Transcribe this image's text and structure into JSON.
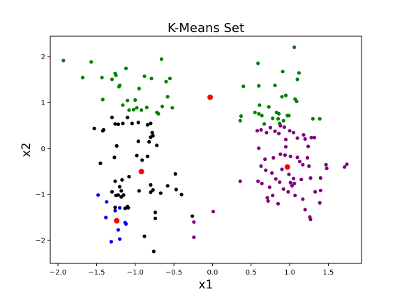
{
  "chart_data": {
    "type": "scatter",
    "title": "K-Means Set",
    "xlabel": "x1",
    "ylabel": "x2",
    "xlim": [
      -2.1,
      1.93
    ],
    "ylim": [
      -2.5,
      2.45
    ],
    "xticks": [
      -2.0,
      -1.5,
      -1.0,
      -0.5,
      0.0,
      0.5,
      1.0,
      1.5
    ],
    "xtick_labels": [
      "−2.0",
      "−1.5",
      "−1.0",
      "−0.5",
      "0.0",
      "0.5",
      "1.0",
      "1.5"
    ],
    "yticks": [
      -2,
      -1,
      0,
      1,
      2
    ],
    "ytick_labels": [
      "−2",
      "−1",
      "0",
      "1",
      "2"
    ],
    "grid": false,
    "series": [
      {
        "color": "#008000",
        "points": [
          [
            -1.93,
            1.92
          ],
          [
            -1.68,
            1.55
          ],
          [
            -1.57,
            1.89
          ],
          [
            -1.43,
            1.55
          ],
          [
            -1.3,
            1.51
          ],
          [
            -1.26,
            1.64
          ],
          [
            -1.25,
            1.6
          ],
          [
            -1.2,
            1.38
          ],
          [
            -1.21,
            1.35
          ],
          [
            -1.12,
            1.75
          ],
          [
            -0.88,
            1.58
          ],
          [
            -0.79,
            1.53
          ],
          [
            -0.66,
            1.95
          ],
          [
            -0.6,
            1.46
          ],
          [
            -0.55,
            1.53
          ],
          [
            -1.42,
            1.07
          ],
          [
            -1.16,
            0.95
          ],
          [
            -1.1,
            1.05
          ],
          [
            -1.0,
            1.06
          ],
          [
            -0.95,
            1.31
          ],
          [
            -1.08,
            0.84
          ],
          [
            -1.02,
            0.85
          ],
          [
            -0.98,
            0.89
          ],
          [
            -0.92,
            0.84
          ],
          [
            -0.85,
            0.9
          ],
          [
            -0.72,
            0.79
          ],
          [
            -0.7,
            0.76
          ],
          [
            -0.65,
            0.92
          ],
          [
            -0.58,
            1.13
          ],
          [
            -0.52,
            0.89
          ],
          [
            1.06,
            2.21
          ],
          [
            0.59,
            1.86
          ],
          [
            0.91,
            1.68
          ],
          [
            1.12,
            1.65
          ],
          [
            1.1,
            1.51
          ],
          [
            0.4,
            1.36
          ],
          [
            0.6,
            1.37
          ],
          [
            0.81,
            1.38
          ],
          [
            0.9,
            1.13
          ],
          [
            0.95,
            1.16
          ],
          [
            1.07,
            1.08
          ],
          [
            1.09,
            1.03
          ],
          [
            0.55,
            0.79
          ],
          [
            0.6,
            0.76
          ],
          [
            0.64,
            0.72
          ],
          [
            0.73,
            0.91
          ],
          [
            0.83,
            0.79
          ],
          [
            0.86,
            0.76
          ],
          [
            0.85,
            0.65
          ],
          [
            0.97,
            0.72
          ],
          [
            0.92,
            0.61
          ],
          [
            0.36,
            0.61
          ],
          [
            0.37,
            0.71
          ],
          [
            0.67,
            0.54
          ],
          [
            0.87,
            0.55
          ],
          [
            1.3,
            0.65
          ],
          [
            1.39,
            0.65
          ],
          [
            0.61,
            0.95
          ],
          [
            0.99,
            0.72
          ],
          [
            0.78,
            0.66
          ]
        ]
      },
      {
        "color": "#000000",
        "points": [
          [
            -1.53,
            0.44
          ],
          [
            -1.42,
            0.39
          ],
          [
            -1.41,
            0.41
          ],
          [
            -1.3,
            0.68
          ],
          [
            -1.26,
            0.54
          ],
          [
            -1.22,
            0.53
          ],
          [
            -1.16,
            0.55
          ],
          [
            -1.1,
            0.68
          ],
          [
            -1.04,
            0.55
          ],
          [
            -0.96,
            0.57
          ],
          [
            -0.84,
            0.52
          ],
          [
            -0.8,
            0.55
          ],
          [
            -0.78,
            0.35
          ],
          [
            -0.8,
            0.25
          ],
          [
            -0.77,
            0.28
          ],
          [
            -0.82,
            0.15
          ],
          [
            -0.72,
            0.07
          ],
          [
            -0.96,
            0.16
          ],
          [
            -1.24,
            0.06
          ],
          [
            -1.45,
            -0.32
          ],
          [
            -1.27,
            -0.19
          ],
          [
            -0.98,
            -0.15
          ],
          [
            -0.91,
            -0.25
          ],
          [
            -0.84,
            -0.17
          ],
          [
            -1.08,
            -0.61
          ],
          [
            -1.2,
            -0.83
          ],
          [
            -1.18,
            -0.92
          ],
          [
            -1.15,
            -1.01
          ],
          [
            -1.25,
            -1.02
          ],
          [
            -1.3,
            -0.94
          ],
          [
            -1.18,
            -1.05
          ],
          [
            -1.1,
            -1.26
          ],
          [
            -1.09,
            -1.29
          ],
          [
            -1.13,
            -1.3
          ],
          [
            -1.26,
            -1.28
          ],
          [
            -1.22,
            -1.01
          ],
          [
            -0.95,
            -0.92
          ],
          [
            -0.8,
            -0.79
          ],
          [
            -0.8,
            -0.95
          ],
          [
            -0.77,
            -0.9
          ],
          [
            -0.67,
            -0.97
          ],
          [
            -0.58,
            -0.81
          ],
          [
            -0.48,
            -0.55
          ],
          [
            -0.47,
            -0.89
          ],
          [
            -0.4,
            -1.0
          ],
          [
            -0.74,
            -1.39
          ],
          [
            -0.74,
            -1.52
          ],
          [
            -0.88,
            -1.91
          ],
          [
            -0.76,
            -2.24
          ],
          [
            -0.26,
            -1.47
          ],
          [
            -1.26,
            -0.71
          ],
          [
            -1.17,
            -0.68
          ]
        ]
      },
      {
        "color": "#0000ff",
        "points": [
          [
            -1.48,
            -1.01
          ],
          [
            -1.37,
            -1.16
          ],
          [
            -1.38,
            -1.5
          ],
          [
            -1.26,
            -1.35
          ],
          [
            -1.2,
            -1.29
          ],
          [
            -1.13,
            -1.61
          ],
          [
            -1.12,
            -1.64
          ],
          [
            -1.2,
            -1.97
          ],
          [
            -1.31,
            -2.03
          ],
          [
            -1.22,
            -1.77
          ]
        ]
      },
      {
        "color": "#800080",
        "points": [
          [
            -0.24,
            -1.6
          ],
          [
            -0.24,
            -1.93
          ],
          [
            0.01,
            -1.37
          ],
          [
            0.36,
            -0.71
          ],
          [
            0.58,
            0.39
          ],
          [
            0.63,
            0.41
          ],
          [
            0.7,
            0.35
          ],
          [
            0.75,
            0.46
          ],
          [
            0.81,
            0.38
          ],
          [
            0.86,
            0.33
          ],
          [
            0.88,
            0.5
          ],
          [
            0.93,
            0.47
          ],
          [
            1.0,
            0.39
          ],
          [
            1.05,
            0.35
          ],
          [
            0.95,
            0.2
          ],
          [
            1.1,
            0.23
          ],
          [
            1.18,
            0.3
          ],
          [
            1.2,
            0.21
          ],
          [
            1.28,
            0.24
          ],
          [
            1.32,
            0.24
          ],
          [
            1.24,
            0.05
          ],
          [
            0.95,
            0.04
          ],
          [
            0.6,
            0.01
          ],
          [
            0.68,
            -0.23
          ],
          [
            0.79,
            -0.2
          ],
          [
            0.88,
            -0.12
          ],
          [
            0.94,
            -0.14
          ],
          [
            1.01,
            -0.17
          ],
          [
            1.1,
            -0.19
          ],
          [
            1.13,
            -0.28
          ],
          [
            1.17,
            -0.35
          ],
          [
            1.23,
            -0.2
          ],
          [
            1.25,
            -0.38
          ],
          [
            1.47,
            -0.35
          ],
          [
            1.48,
            -0.43
          ],
          [
            1.71,
            -0.4
          ],
          [
            1.74,
            -0.34
          ],
          [
            0.63,
            -0.38
          ],
          [
            0.69,
            -0.47
          ],
          [
            0.77,
            -0.53
          ],
          [
            0.82,
            -0.66
          ],
          [
            0.87,
            -0.73
          ],
          [
            0.9,
            -0.45
          ],
          [
            0.99,
            -0.56
          ],
          [
            1.05,
            -0.65
          ],
          [
            1.01,
            -0.74
          ],
          [
            1.06,
            -0.76
          ],
          [
            1.15,
            -0.67
          ],
          [
            1.27,
            -0.64
          ],
          [
            1.4,
            -0.64
          ],
          [
            0.71,
            -1.07
          ],
          [
            0.72,
            -1.14
          ],
          [
            0.78,
            -1.02
          ],
          [
            0.85,
            -1.2
          ],
          [
            0.92,
            -0.88
          ],
          [
            0.98,
            -0.94
          ],
          [
            1.03,
            -0.81
          ],
          [
            1.07,
            -1.02
          ],
          [
            1.17,
            -1.1
          ],
          [
            1.2,
            -1.33
          ],
          [
            1.26,
            -1.49
          ],
          [
            1.27,
            -1.54
          ],
          [
            1.33,
            -0.94
          ],
          [
            1.4,
            -0.91
          ],
          [
            1.39,
            -1.18
          ],
          [
            0.59,
            -0.71
          ],
          [
            0.64,
            -0.76
          ],
          [
            0.74,
            -0.84
          ]
        ]
      },
      {
        "color": "#ff0000",
        "points": [
          [
            -0.03,
            1.12
          ],
          [
            -0.92,
            -0.5
          ],
          [
            0.97,
            -0.4
          ],
          [
            -1.24,
            -1.57
          ]
        ]
      }
    ]
  }
}
